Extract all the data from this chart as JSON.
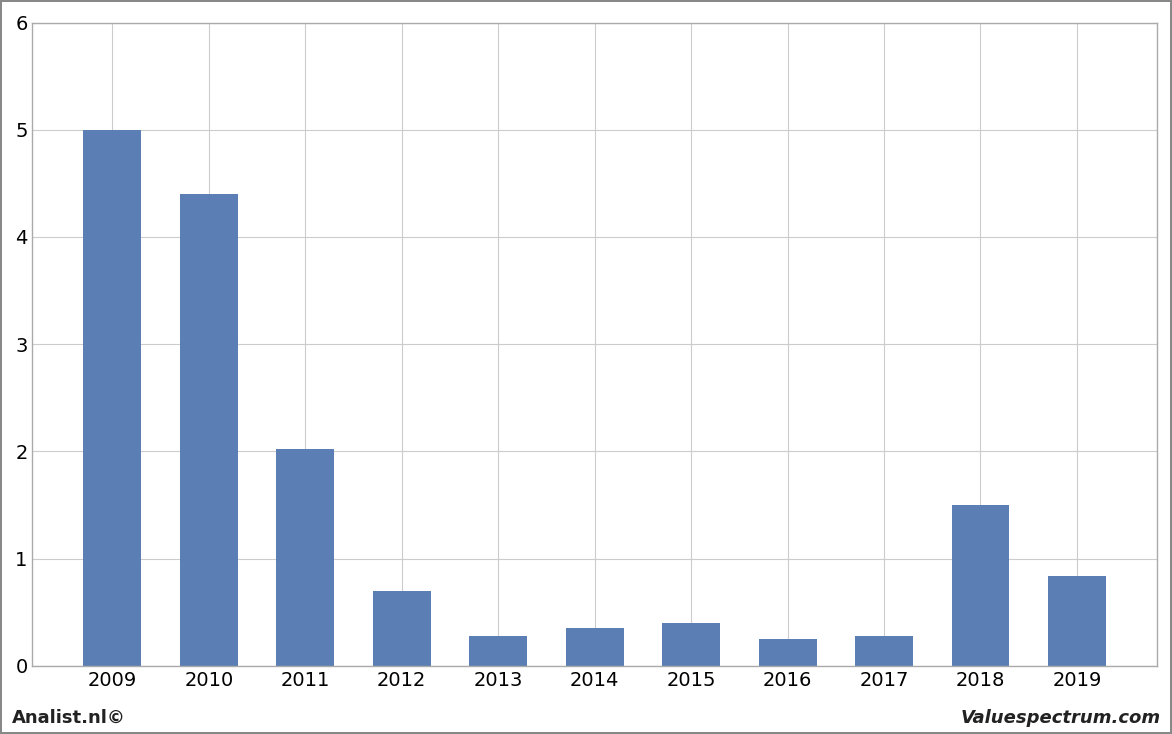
{
  "categories": [
    "2009",
    "2010",
    "2011",
    "2012",
    "2013",
    "2014",
    "2015",
    "2016",
    "2017",
    "2018",
    "2019"
  ],
  "values": [
    5.0,
    4.4,
    2.02,
    0.7,
    0.28,
    0.35,
    0.4,
    0.25,
    0.28,
    1.5,
    0.84
  ],
  "bar_color": "#5b7fb5",
  "ylim": [
    0,
    6
  ],
  "yticks": [
    0,
    1,
    2,
    3,
    4,
    5,
    6
  ],
  "background_color": "#ffffff",
  "plot_background": "#ffffff",
  "grid_color": "#cccccc",
  "border_color": "#aaaaaa",
  "footer_left": "Analist.nl©",
  "footer_right": "Valuespectrum.com",
  "footer_fontsize": 13,
  "tick_fontsize": 14
}
